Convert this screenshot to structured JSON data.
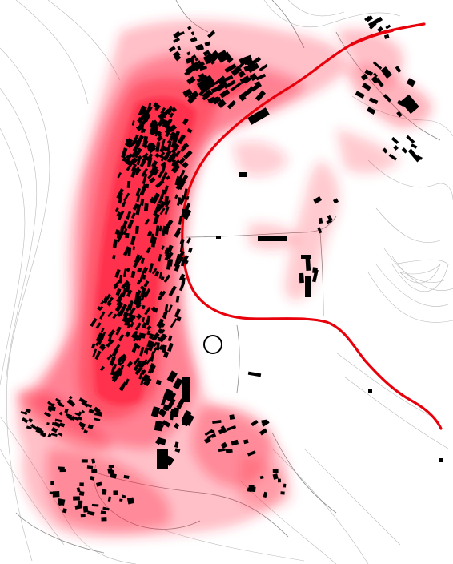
{
  "map": {
    "type": "figure-ground settlement density map",
    "labels": [],
    "colors": {
      "background": "#ffffff",
      "density_heat": "#ff2a45",
      "buildings": "#000000",
      "main_road": "#e8000b",
      "contour_lines": "#9a9a9a",
      "secondary_roads": "#7a7a7a"
    },
    "legend": null,
    "scale_bar": null,
    "north_arrow": null
  }
}
